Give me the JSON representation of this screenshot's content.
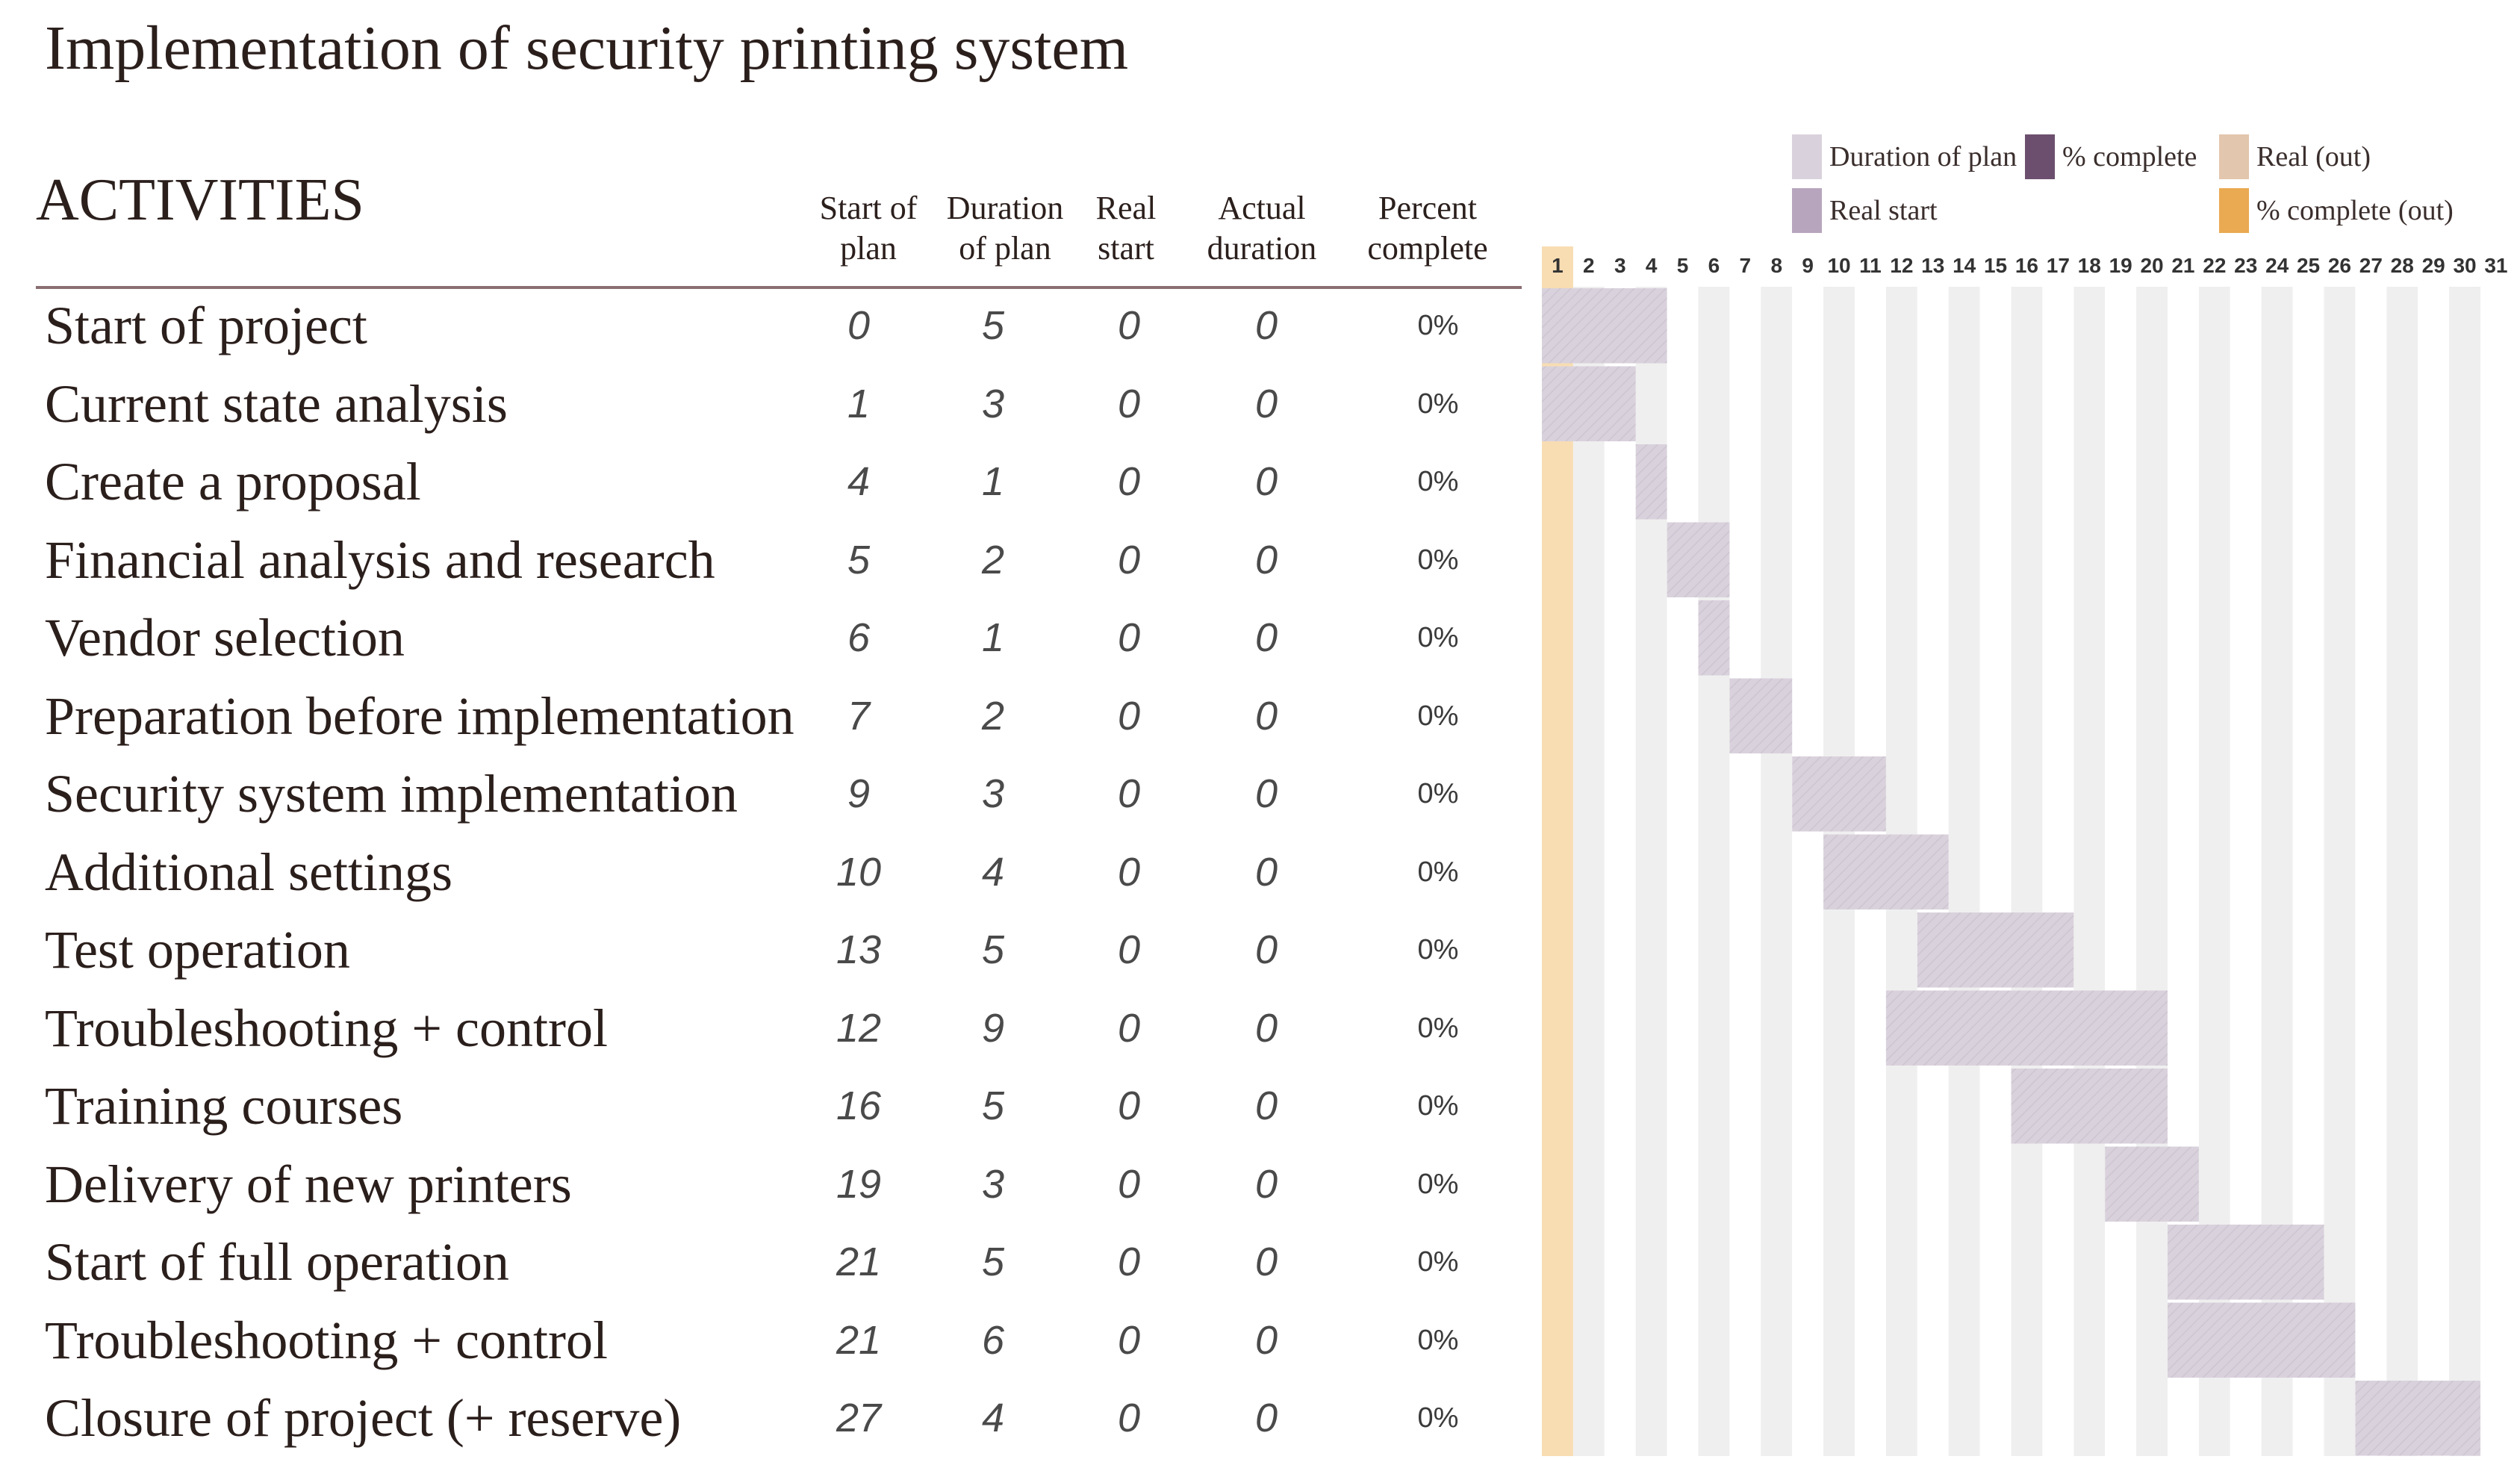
{
  "title": "Implementation of security printing system",
  "headers": {
    "activities": "ACTIVITIES",
    "start_of_plan": "Start of\nplan",
    "duration_of_plan": "Duration\nof plan",
    "real_start": "Real\nstart",
    "actual_duration": "Actual\nduration",
    "percent_complete": "Percent\ncomplete"
  },
  "legend": {
    "duration_of_plan": "Duration of plan",
    "real_start": "Real start",
    "pct_complete": "% complete",
    "real_out": "Real (out)",
    "pct_complete_out": "% complete (out)"
  },
  "colors": {
    "plan_bar": "#d9d2dc",
    "real_start": "#b7a5bd",
    "pct_complete": "#6c4f6e",
    "real_out": "#e2c6ad",
    "pct_complete_out": "#eaaa52",
    "highlight_column": "#f8ddb3",
    "stripe": "#efefef",
    "rule": "#8a6e72"
  },
  "activities": [
    {
      "name": "Start of project",
      "start": "0",
      "duration": "5",
      "real_start": "0",
      "actual_duration": "0",
      "percent": "0%"
    },
    {
      "name": "Current state analysis",
      "start": "1",
      "duration": "3",
      "real_start": "0",
      "actual_duration": "0",
      "percent": "0%"
    },
    {
      "name": "Create a proposal",
      "start": "4",
      "duration": "1",
      "real_start": "0",
      "actual_duration": "0",
      "percent": "0%"
    },
    {
      "name": "Financial analysis and research",
      "start": "5",
      "duration": "2",
      "real_start": "0",
      "actual_duration": "0",
      "percent": "0%"
    },
    {
      "name": "Vendor selection",
      "start": "6",
      "duration": "1",
      "real_start": "0",
      "actual_duration": "0",
      "percent": "0%"
    },
    {
      "name": "Preparation before implementation",
      "start": "7",
      "duration": "2",
      "real_start": "0",
      "actual_duration": "0",
      "percent": "0%"
    },
    {
      "name": "Security system implementation",
      "start": "9",
      "duration": "3",
      "real_start": "0",
      "actual_duration": "0",
      "percent": "0%"
    },
    {
      "name": "Additional settings",
      "start": "10",
      "duration": "4",
      "real_start": "0",
      "actual_duration": "0",
      "percent": "0%"
    },
    {
      "name": "Test operation",
      "start": "13",
      "duration": "5",
      "real_start": "0",
      "actual_duration": "0",
      "percent": "0%"
    },
    {
      "name": "Troubleshooting + control",
      "start": "12",
      "duration": "9",
      "real_start": "0",
      "actual_duration": "0",
      "percent": "0%"
    },
    {
      "name": "Training courses",
      "start": "16",
      "duration": "5",
      "real_start": "0",
      "actual_duration": "0",
      "percent": "0%"
    },
    {
      "name": "Delivery of new printers",
      "start": "19",
      "duration": "3",
      "real_start": "0",
      "actual_duration": "0",
      "percent": "0%"
    },
    {
      "name": "Start of full operation",
      "start": "21",
      "duration": "5",
      "real_start": "0",
      "actual_duration": "0",
      "percent": "0%"
    },
    {
      "name": "Troubleshooting + control",
      "start": "21",
      "duration": "6",
      "real_start": "0",
      "actual_duration": "0",
      "percent": "0%"
    },
    {
      "name": "Closure of project (+ reserve)",
      "start": "27",
      "duration": "4",
      "real_start": "0",
      "actual_duration": "0",
      "percent": "0%"
    }
  ],
  "chart_data": {
    "type": "gantt",
    "title": "Implementation of security printing system",
    "periods": [
      "1",
      "2",
      "3",
      "4",
      "5",
      "6",
      "7",
      "8",
      "9",
      "10",
      "11",
      "12",
      "13",
      "14",
      "15",
      "16",
      "17",
      "18",
      "19",
      "20",
      "21",
      "22",
      "23",
      "24",
      "25",
      "26",
      "27",
      "28",
      "29",
      "30",
      "31"
    ],
    "highlight_period": 1,
    "tasks": [
      {
        "name": "Start of project",
        "plan_start": 0,
        "plan_duration": 5
      },
      {
        "name": "Current state analysis",
        "plan_start": 1,
        "plan_duration": 3
      },
      {
        "name": "Create a proposal",
        "plan_start": 4,
        "plan_duration": 1
      },
      {
        "name": "Financial analysis and research",
        "plan_start": 5,
        "plan_duration": 2
      },
      {
        "name": "Vendor selection",
        "plan_start": 6,
        "plan_duration": 1
      },
      {
        "name": "Preparation before implementation",
        "plan_start": 7,
        "plan_duration": 2
      },
      {
        "name": "Security system implementation",
        "plan_start": 9,
        "plan_duration": 3
      },
      {
        "name": "Additional settings",
        "plan_start": 10,
        "plan_duration": 4
      },
      {
        "name": "Test operation",
        "plan_start": 13,
        "plan_duration": 5
      },
      {
        "name": "Troubleshooting + control",
        "plan_start": 12,
        "plan_duration": 9
      },
      {
        "name": "Training courses",
        "plan_start": 16,
        "plan_duration": 5
      },
      {
        "name": "Delivery of new printers",
        "plan_start": 19,
        "plan_duration": 3
      },
      {
        "name": "Start of full operation",
        "plan_start": 21,
        "plan_duration": 5
      },
      {
        "name": "Troubleshooting + control",
        "plan_start": 21,
        "plan_duration": 6
      },
      {
        "name": "Closure of project (+ reserve)",
        "plan_start": 27,
        "plan_duration": 4
      }
    ],
    "legend": [
      "Duration of plan",
      "Real start",
      "% complete",
      "Real (out)",
      "% complete (out)"
    ]
  }
}
